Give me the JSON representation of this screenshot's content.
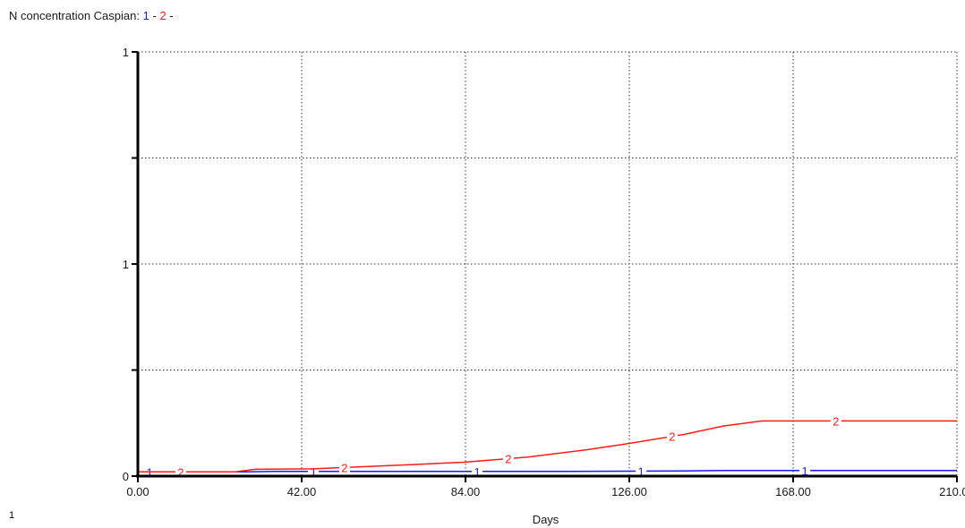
{
  "header": {
    "title_prefix": "N concentration Caspian:",
    "series_1_marker": "1",
    "separator": "-",
    "series_2_marker": "2",
    "trailing": "-"
  },
  "footer": {
    "page_label": "1"
  },
  "colors": {
    "series_1": "#1a1aff",
    "series_2": "#ff1a1a",
    "axis": "#000000",
    "grid": "#333333"
  },
  "chart_data": {
    "type": "line",
    "title": "N concentration Caspian:",
    "xlabel": "Days",
    "ylabel": "",
    "xlim": [
      0,
      210
    ],
    "ylim": [
      0,
      1
    ],
    "x_ticks": [
      0,
      42,
      84,
      126,
      168,
      210
    ],
    "x_tick_labels": [
      "0.00",
      "42.00",
      "84.00",
      "126.00",
      "168.00",
      "210.00"
    ],
    "y_ticks": [
      0,
      0.5,
      1
    ],
    "y_tick_labels": [
      "0",
      "1",
      "1"
    ],
    "y_minor_ticks": [
      0.25,
      0.75
    ],
    "grid": true,
    "legend": "inline in title",
    "series": [
      {
        "name": "1",
        "color": "#1a1aff",
        "x": [
          0,
          28,
          35,
          48,
          70,
          105,
          140,
          150,
          175,
          210
        ],
        "y": [
          0.01,
          0.01,
          0.011,
          0.011,
          0.011,
          0.011,
          0.012,
          0.013,
          0.013,
          0.013
        ],
        "marker_x": [
          3,
          45,
          87,
          129,
          171
        ]
      },
      {
        "name": "2",
        "color": "#ff1a1a",
        "x": [
          0,
          25,
          30,
          45,
          55,
          70,
          84,
          100,
          115,
          126,
          140,
          150,
          160,
          175,
          210
        ],
        "y": [
          0.01,
          0.01,
          0.016,
          0.017,
          0.021,
          0.027,
          0.033,
          0.045,
          0.062,
          0.077,
          0.098,
          0.118,
          0.13,
          0.13,
          0.13
        ],
        "marker_x": [
          11,
          53,
          95,
          137,
          179
        ]
      }
    ]
  }
}
